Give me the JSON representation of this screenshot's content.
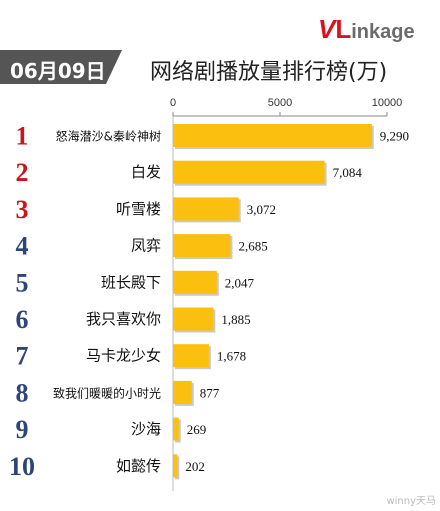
{
  "logo": {
    "v": "V",
    "l": "L",
    "rest": "inkage"
  },
  "date": "06月09日",
  "title": "网络剧播放量排行榜(万)",
  "watermark": "winny天马",
  "colors": {
    "bar": "#fbbf10",
    "rank_red": "#c8161d",
    "rank_blue": "#2e4677",
    "badge": "#555555"
  },
  "chart_data": {
    "type": "bar",
    "orientation": "horizontal",
    "title": "网络剧播放量排行榜(万)",
    "xlim": [
      0,
      10000
    ],
    "x_ticks": [
      "0",
      "5000",
      "10000"
    ],
    "ranks": [
      "1",
      "2",
      "3",
      "4",
      "5",
      "6",
      "7",
      "8",
      "9",
      "10"
    ],
    "categories": [
      "怒海潜沙&秦岭神树",
      "白发",
      "听雪楼",
      "凤弈",
      "班长殿下",
      "我只喜欢你",
      "马卡龙少女",
      "致我们暖暖的小时光",
      "沙海",
      "如懿传"
    ],
    "values": [
      9290,
      7084,
      3072,
      2685,
      2047,
      1885,
      1678,
      877,
      269,
      202
    ],
    "value_labels": [
      "9,290",
      "7,084",
      "3,072",
      "2,685",
      "2,047",
      "1,885",
      "1,678",
      "877",
      "269",
      "202"
    ],
    "grid": false,
    "legend": "none"
  }
}
